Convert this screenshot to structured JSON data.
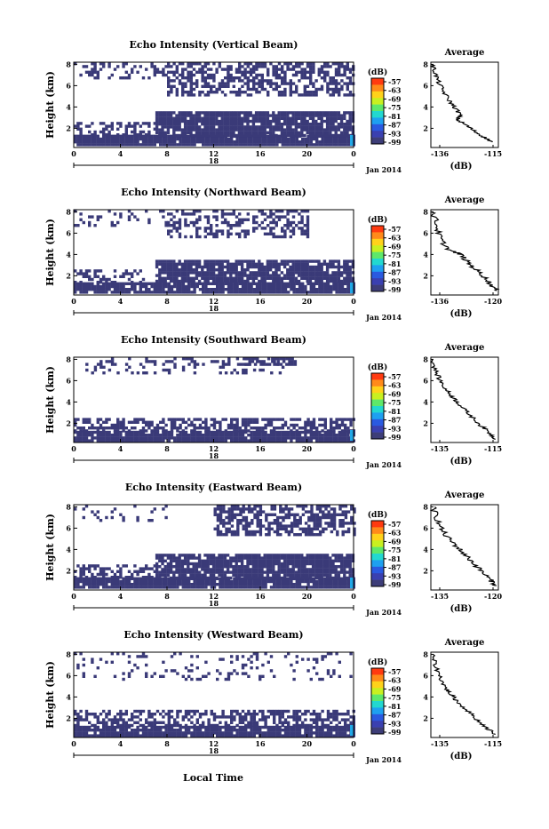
{
  "colorbar": {
    "unit_label": "(dB)",
    "ticks": [
      "-57",
      "-63",
      "-69",
      "-75",
      "-81",
      "-87",
      "-93",
      "-99"
    ],
    "colors": [
      "#ff3a10",
      "#ff8a1a",
      "#ffd21a",
      "#c8f020",
      "#5ee86a",
      "#22d8d0",
      "#1ea0f0",
      "#2a5ae0",
      "#3a40b0",
      "#3d3d78"
    ]
  },
  "x_axis": {
    "ticks": [
      "0",
      "4",
      "8",
      "12",
      "16",
      "20",
      "0"
    ],
    "day_label": "18",
    "date_label": "Jan 2014"
  },
  "y_axis_label": "Height (km)",
  "y_ticks": [
    "8",
    "6",
    "4",
    "2"
  ],
  "bottom_label": "Local Time",
  "average_title": "Average",
  "average_unit": "(dB)",
  "colors": {
    "echo_fill": "#3a3a78",
    "high_echo": "#22a8e8",
    "axis": "#000000"
  },
  "chart_data": [
    {
      "type": "heatmap",
      "title": "Echo Intensity (Vertical Beam)",
      "ylabel": "Height (km)",
      "xlim": [
        0,
        24
      ],
      "ylim": [
        0.2,
        8.2
      ],
      "bands": [
        {
          "t": [
            0,
            24
          ],
          "h": [
            0.5,
            1.4
          ],
          "coverage": 0.96
        },
        {
          "t": [
            0,
            7
          ],
          "h": [
            1.4,
            2.6
          ],
          "coverage": 0.45
        },
        {
          "t": [
            7,
            24
          ],
          "h": [
            1.4,
            3.6
          ],
          "coverage": 0.9
        },
        {
          "t": [
            8,
            24
          ],
          "h": [
            5.2,
            8.2
          ],
          "coverage": 0.55
        },
        {
          "t": [
            0,
            8
          ],
          "h": [
            6.6,
            8.2
          ],
          "coverage": 0.3
        }
      ],
      "cbar_ticks": [
        "-57",
        "-63",
        "-69",
        "-75",
        "-81",
        "-87",
        "-93",
        "-99"
      ],
      "average": {
        "xlim": [
          -136,
          -113
        ],
        "xticks": [
          "-136",
          "-115"
        ],
        "yticks": [
          "8",
          "6",
          "4",
          "2"
        ],
        "profile": [
          [
            -135.5,
            8
          ],
          [
            -134.5,
            7.2
          ],
          [
            -133.5,
            6.4
          ],
          [
            -132,
            5.6
          ],
          [
            -130,
            4.7
          ],
          [
            -128,
            4.0
          ],
          [
            -126,
            3.3
          ],
          [
            -127,
            2.8
          ],
          [
            -124,
            2.3
          ],
          [
            -121,
            1.7
          ],
          [
            -118,
            1.2
          ],
          [
            -115,
            0.7
          ]
        ]
      }
    },
    {
      "type": "heatmap",
      "title": "Echo Intensity (Northward Beam)",
      "ylabel": "Height (km)",
      "xlim": [
        0,
        24
      ],
      "ylim": [
        0.2,
        8.2
      ],
      "bands": [
        {
          "t": [
            0,
            24
          ],
          "h": [
            0.5,
            1.4
          ],
          "coverage": 0.93
        },
        {
          "t": [
            0,
            6
          ],
          "h": [
            1.4,
            2.6
          ],
          "coverage": 0.4
        },
        {
          "t": [
            7,
            24
          ],
          "h": [
            1.4,
            3.5
          ],
          "coverage": 0.85
        },
        {
          "t": [
            8,
            20
          ],
          "h": [
            5.6,
            8.2
          ],
          "coverage": 0.42
        },
        {
          "t": [
            0,
            8
          ],
          "h": [
            6.6,
            8.2
          ],
          "coverage": 0.15
        }
      ],
      "cbar_ticks": [
        "-57",
        "-63",
        "-69",
        "-75",
        "-81",
        "-87",
        "-93",
        "-99"
      ],
      "average": {
        "xlim": [
          -136,
          -118
        ],
        "xticks": [
          "-136",
          "-120"
        ],
        "yticks": [
          "8",
          "6",
          "4",
          "2"
        ],
        "profile": [
          [
            -135.5,
            8
          ],
          [
            -134.5,
            7.0
          ],
          [
            -134,
            6.0
          ],
          [
            -133,
            5.2
          ],
          [
            -131,
            4.4
          ],
          [
            -128,
            4.0
          ],
          [
            -126,
            3.2
          ],
          [
            -124,
            2.6
          ],
          [
            -122,
            2.0
          ],
          [
            -120,
            1.2
          ],
          [
            -118.5,
            0.6
          ]
        ]
      }
    },
    {
      "type": "heatmap",
      "title": "Echo Intensity (Southward Beam)",
      "ylabel": "Height (km)",
      "xlim": [
        0,
        24
      ],
      "ylim": [
        0.2,
        8.2
      ],
      "bands": [
        {
          "t": [
            0,
            24
          ],
          "h": [
            0.4,
            1.3
          ],
          "coverage": 0.9
        },
        {
          "t": [
            0,
            24
          ],
          "h": [
            1.3,
            2.5
          ],
          "coverage": 0.6
        },
        {
          "t": [
            1,
            18
          ],
          "h": [
            6.6,
            8.2
          ],
          "coverage": 0.22
        },
        {
          "t": [
            14,
            19
          ],
          "h": [
            7.6,
            8.2
          ],
          "coverage": 0.6
        }
      ],
      "cbar_ticks": [
        "-57",
        "-63",
        "-69",
        "-75",
        "-81",
        "-87",
        "-93",
        "-99"
      ],
      "average": {
        "xlim": [
          -136,
          -113
        ],
        "xticks": [
          "-135",
          "-115"
        ],
        "yticks": [
          "8",
          "6",
          "4",
          "2"
        ],
        "profile": [
          [
            -135.5,
            8
          ],
          [
            -134.5,
            7.0
          ],
          [
            -133,
            6.1
          ],
          [
            -131,
            5.2
          ],
          [
            -129,
            4.6
          ],
          [
            -127,
            4.0
          ],
          [
            -125,
            3.4
          ],
          [
            -122,
            2.6
          ],
          [
            -119,
            1.8
          ],
          [
            -116,
            1.1
          ],
          [
            -114,
            0.5
          ]
        ]
      }
    },
    {
      "type": "heatmap",
      "title": "Echo Intensity (Eastward Beam)",
      "ylabel": "Height (km)",
      "xlim": [
        0,
        24
      ],
      "ylim": [
        0.2,
        8.2
      ],
      "bands": [
        {
          "t": [
            0,
            24
          ],
          "h": [
            0.5,
            1.4
          ],
          "coverage": 0.95
        },
        {
          "t": [
            0,
            7
          ],
          "h": [
            1.4,
            2.6
          ],
          "coverage": 0.4
        },
        {
          "t": [
            7,
            24
          ],
          "h": [
            1.4,
            3.6
          ],
          "coverage": 0.88
        },
        {
          "t": [
            12,
            24
          ],
          "h": [
            5.4,
            8.2
          ],
          "coverage": 0.55
        },
        {
          "t": [
            0,
            8
          ],
          "h": [
            6.6,
            8.2
          ],
          "coverage": 0.2
        }
      ],
      "cbar_ticks": [
        "-57",
        "-63",
        "-69",
        "-75",
        "-81",
        "-87",
        "-93",
        "-99"
      ],
      "average": {
        "xlim": [
          -136,
          -118
        ],
        "xticks": [
          "-135",
          "-120"
        ],
        "yticks": [
          "8",
          "6",
          "4",
          "2"
        ],
        "profile": [
          [
            -135.5,
            8
          ],
          [
            -134.5,
            7.1
          ],
          [
            -133.5,
            6.1
          ],
          [
            -132,
            5.3
          ],
          [
            -130,
            4.6
          ],
          [
            -128,
            3.9
          ],
          [
            -126,
            3.2
          ],
          [
            -124,
            2.5
          ],
          [
            -122,
            1.8
          ],
          [
            -120,
            1.1
          ],
          [
            -118.5,
            0.6
          ]
        ]
      }
    },
    {
      "type": "heatmap",
      "title": "Echo Intensity (Westward Beam)",
      "ylabel": "Height (km)",
      "xlim": [
        0,
        24
      ],
      "ylim": [
        0.2,
        8.2
      ],
      "bands": [
        {
          "t": [
            0,
            24
          ],
          "h": [
            0.4,
            1.3
          ],
          "coverage": 0.92
        },
        {
          "t": [
            0,
            24
          ],
          "h": [
            1.3,
            2.8
          ],
          "coverage": 0.55
        },
        {
          "t": [
            0,
            24
          ],
          "h": [
            5.6,
            8.2
          ],
          "coverage": 0.14
        }
      ],
      "cbar_ticks": [
        "-57",
        "-63",
        "-69",
        "-75",
        "-81",
        "-87",
        "-93",
        "-99"
      ],
      "average": {
        "xlim": [
          -136,
          -113
        ],
        "xticks": [
          "-135",
          "-115"
        ],
        "yticks": [
          "8",
          "6",
          "4",
          "2"
        ],
        "profile": [
          [
            -135.5,
            8
          ],
          [
            -134.5,
            7.0
          ],
          [
            -133,
            6.0
          ],
          [
            -131.5,
            5.1
          ],
          [
            -130,
            4.5
          ],
          [
            -128,
            3.9
          ],
          [
            -126,
            3.3
          ],
          [
            -123,
            2.6
          ],
          [
            -120,
            1.8
          ],
          [
            -117,
            1.1
          ],
          [
            -114,
            0.5
          ]
        ]
      }
    }
  ]
}
